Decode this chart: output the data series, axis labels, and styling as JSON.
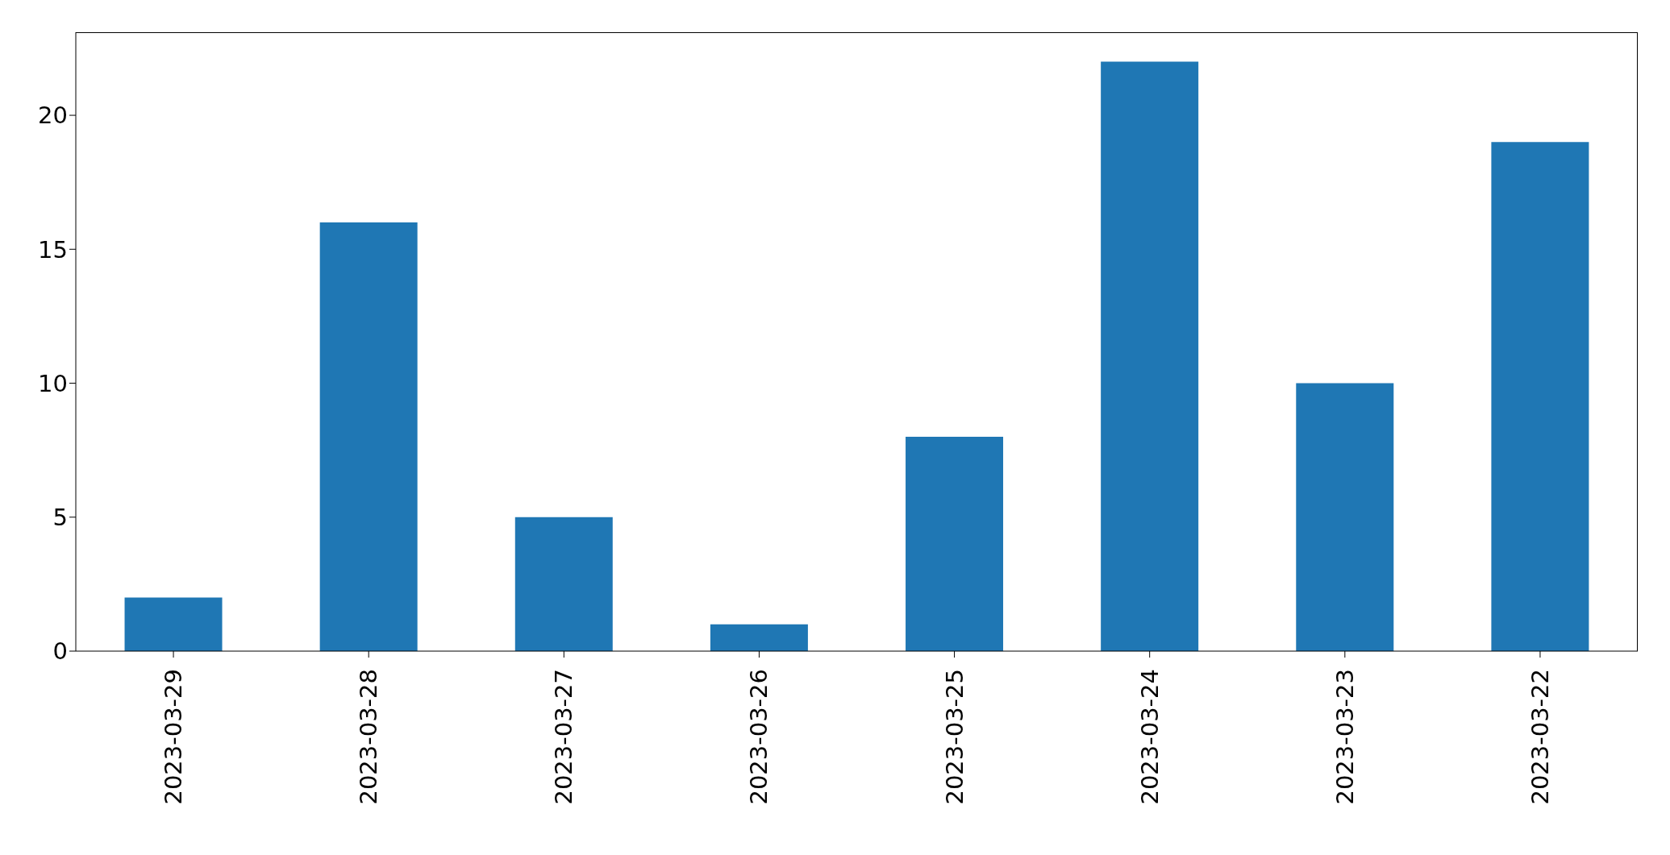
{
  "chart_data": {
    "type": "bar",
    "categories": [
      "2023-03-29",
      "2023-03-28",
      "2023-03-27",
      "2023-03-26",
      "2023-03-25",
      "2023-03-24",
      "2023-03-23",
      "2023-03-22"
    ],
    "values": [
      2,
      16,
      5,
      1,
      8,
      22,
      10,
      19
    ],
    "color": "#1f77b4",
    "ylim": [
      0,
      23.1
    ],
    "yticks": [
      0,
      5,
      10,
      15,
      20
    ],
    "grid": false
  }
}
